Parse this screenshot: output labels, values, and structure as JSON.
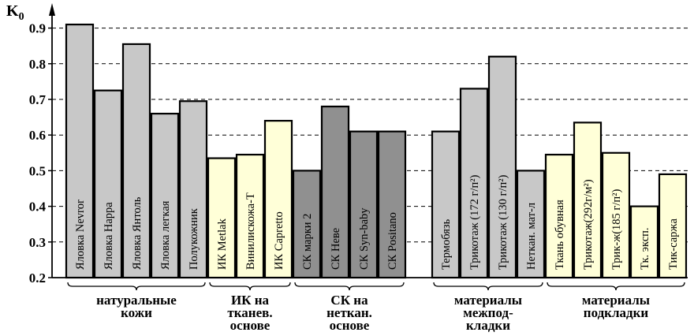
{
  "chart_data": {
    "type": "bar",
    "ylabel": "K",
    "ylabel_subscript": "0",
    "ylim": [
      0.2,
      0.95
    ],
    "yticks": [
      "0.2",
      "0.3",
      "0.4",
      "0.5",
      "0.6",
      "0.7",
      "0.8",
      "0.9"
    ],
    "grid": "horizontal-dashed",
    "bars": [
      {
        "label": "Яловка Nevror",
        "value": 0.91,
        "color": "#c8c8c8"
      },
      {
        "label": "Яловка Нappa",
        "value": 0.725,
        "color": "#c8c8c8"
      },
      {
        "label": "Яловка Янтоль",
        "value": 0.855,
        "color": "#c8c8c8"
      },
      {
        "label": "Яловка легкая",
        "value": 0.66,
        "color": "#c8c8c8"
      },
      {
        "label": "Полукожник",
        "value": 0.695,
        "color": "#c8c8c8"
      },
      {
        "label": "ИК Metlak",
        "value": 0.535,
        "color": "#ffffd8"
      },
      {
        "label": "Винилискожа-Т",
        "value": 0.545,
        "color": "#ffffd8"
      },
      {
        "label": "ИК Capretto",
        "value": 0.64,
        "color": "#ffffd8"
      },
      {
        "label": "СК марки 2",
        "value": 0.5,
        "color": "#909090"
      },
      {
        "label": "СК Невe",
        "value": 0.68,
        "color": "#909090"
      },
      {
        "label": "СК Syn-baby",
        "value": 0.61,
        "color": "#909090"
      },
      {
        "label": "СК Positano",
        "value": 0.61,
        "color": "#909090"
      },
      {
        "label": "Термобязь",
        "value": 0.61,
        "color": "#c8c8c8"
      },
      {
        "label": "Трикотаж (172 г/п²)",
        "value": 0.73,
        "color": "#c8c8c8"
      },
      {
        "label": "Трикотаж (130 г/п²)",
        "value": 0.82,
        "color": "#c8c8c8"
      },
      {
        "label": "Неткан. мат-л",
        "value": 0.5,
        "color": "#c8c8c8"
      },
      {
        "label": "Ткань обувная",
        "value": 0.545,
        "color": "#ffffd8"
      },
      {
        "label": "Трикотаж(292г/м²)",
        "value": 0.635,
        "color": "#ffffd8"
      },
      {
        "label": "Трик-ж(185 г/п²)",
        "value": 0.55,
        "color": "#ffffd8"
      },
      {
        "label": "Тк. эксп.",
        "value": 0.4,
        "color": "#ffffd8"
      },
      {
        "label": "Тик-саржа",
        "value": 0.49,
        "color": "#ffffd8"
      }
    ],
    "groups": [
      {
        "lines": [
          "натуральные",
          "кожи"
        ],
        "bars": [
          0,
          4
        ]
      },
      {
        "lines": [
          "ИК на",
          "тканев.",
          "основе"
        ],
        "bars": [
          5,
          7
        ]
      },
      {
        "lines": [
          "СК на",
          "неткан.",
          "основе"
        ],
        "bars": [
          8,
          11
        ]
      },
      {
        "lines": [
          "материалы",
          "межпод-",
          "кладки"
        ],
        "bars": [
          12,
          15
        ]
      },
      {
        "lines": [
          "материалы",
          "подкладки"
        ],
        "bars": [
          16,
          20
        ]
      }
    ]
  }
}
